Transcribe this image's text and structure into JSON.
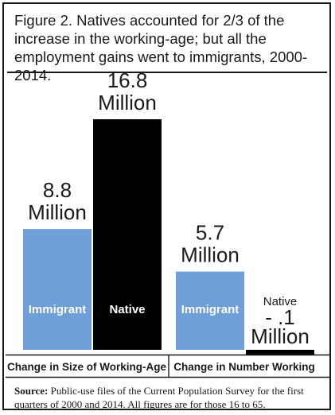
{
  "title": "Figure 2. Natives accounted for 2/3 of the increase in the working-age; but all the employment gains went to immigrants, 2000-2014.",
  "source_label": "Source:",
  "source_text": "Public-use files of the Current Population Survey for the first quarters of 2000 and 2014. All figures are for those 16 to 65.",
  "colors": {
    "immigrant": "#6f9fd9",
    "native": "#000000",
    "text": "#1a1a1a"
  },
  "chart_data": {
    "type": "bar",
    "categories": [
      "Change in Size of Working-Age",
      "Change in Number Working"
    ],
    "unit": "Million",
    "series": [
      {
        "name": "Immigrant",
        "values": [
          8.8,
          5.7
        ],
        "labels": [
          "8.8",
          "5.7"
        ]
      },
      {
        "name": "Native",
        "values": [
          16.8,
          -0.1
        ],
        "labels": [
          "16.8",
          "- .1"
        ]
      }
    ],
    "ylim": [
      -0.2,
      16.8
    ],
    "grid": false,
    "legend": "none"
  }
}
